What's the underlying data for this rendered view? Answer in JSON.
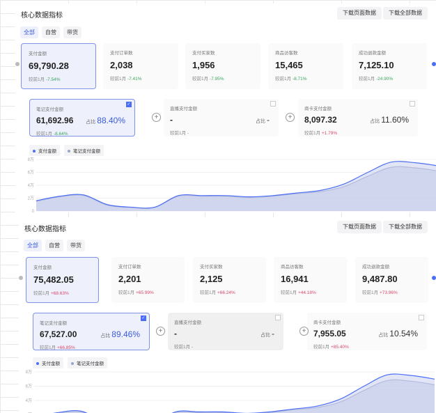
{
  "panels": [
    {
      "title": "核心数据指标",
      "buttons": [
        "下载页面数据",
        "下载全部数据"
      ],
      "tabs": [
        "全部",
        "自营",
        "带货"
      ],
      "active_tab": 0,
      "metrics": [
        {
          "label": "支付金额",
          "value": "69,790.28",
          "compare_label": "较前1月",
          "change": "-7.54%",
          "trend": "down"
        },
        {
          "label": "支付订单数",
          "value": "2,038",
          "compare_label": "较前1月",
          "change": "-7.41%",
          "trend": "down"
        },
        {
          "label": "支付买家数",
          "value": "1,956",
          "compare_label": "较前1月",
          "change": "-7.95%",
          "trend": "down"
        },
        {
          "label": "商品访客数",
          "value": "15,465",
          "compare_label": "较前1月",
          "change": "-8.71%",
          "trend": "down"
        },
        {
          "label": "成功退款金额",
          "value": "7,125.10",
          "compare_label": "较前1月",
          "change": "-24.90%",
          "trend": "down"
        }
      ],
      "channels": [
        {
          "label": "笔记支付金额",
          "value": "61,692.96",
          "ratio_label": "占比",
          "ratio": "88.40%",
          "compare_label": "较前1月",
          "change": "-8.64%",
          "trend": "down",
          "checked": true
        },
        {
          "label": "直播支付金额",
          "value": "-",
          "ratio_label": "占比",
          "ratio": "-",
          "compare_label": "较前1月",
          "change": "-",
          "trend": "none",
          "checked": false
        },
        {
          "label": "商卡支付金额",
          "value": "8,097.32",
          "ratio_label": "占比",
          "ratio": "11.60%",
          "compare_label": "较前1月",
          "change": "+1.79%",
          "trend": "up",
          "checked": false
        }
      ],
      "legend": [
        "支付金额",
        "笔记支付金额"
      ]
    },
    {
      "title": "核心数据指标",
      "buttons": [
        "下载页面数据",
        "下载全部数据"
      ],
      "tabs": [
        "全部",
        "自营",
        "带货"
      ],
      "active_tab": 0,
      "metrics": [
        {
          "label": "支付金额",
          "value": "75,482.05",
          "compare_label": "较前1月",
          "change": "+68.63%",
          "trend": "up"
        },
        {
          "label": "支付订单数",
          "value": "2,201",
          "compare_label": "较前1月",
          "change": "+65.99%",
          "trend": "up"
        },
        {
          "label": "支付买家数",
          "value": "2,125",
          "compare_label": "较前1月",
          "change": "+66.24%",
          "trend": "up"
        },
        {
          "label": "商品访客数",
          "value": "16,941",
          "compare_label": "较前1月",
          "change": "+44.18%",
          "trend": "up"
        },
        {
          "label": "成功退款金额",
          "value": "9,487.80",
          "compare_label": "较前1月",
          "change": "+73.96%",
          "trend": "up"
        }
      ],
      "channels": [
        {
          "label": "笔记支付金额",
          "value": "67,527.00",
          "ratio_label": "占比",
          "ratio": "89.46%",
          "compare_label": "较前1月",
          "change": "+66.85%",
          "trend": "up",
          "checked": true
        },
        {
          "label": "直播支付金额",
          "value": "-",
          "ratio_label": "占比",
          "ratio": "-",
          "compare_label": "较前1月",
          "change": "-",
          "trend": "none",
          "checked": false
        },
        {
          "label": "商卡支付金额",
          "value": "7,955.05",
          "ratio_label": "占比",
          "ratio": "10.54%",
          "compare_label": "较前1月",
          "change": "+85.40%",
          "trend": "up",
          "checked": false
        }
      ],
      "legend": [
        "支付金额",
        "笔记支付金额"
      ]
    }
  ],
  "chart_data": {
    "type": "area",
    "y_ticks": [
      "0",
      "2万",
      "4万",
      "6万",
      "8万"
    ],
    "ylim": [
      0,
      80000
    ],
    "grid": true,
    "legend_position": "top-left",
    "series": [
      {
        "name": "支付金额",
        "color": "#4c6ef5",
        "values": [
          16000,
          23000,
          25000,
          10000,
          6000,
          6000,
          24000,
          24000,
          24000,
          22000,
          24000,
          28000,
          32000,
          42000,
          60000,
          76000,
          75000,
          70000
        ]
      },
      {
        "name": "笔记支付金额",
        "color": "#9aa3c8",
        "values": [
          15000,
          22000,
          24000,
          9000,
          5500,
          5500,
          23000,
          23000,
          23000,
          21000,
          23000,
          27000,
          30000,
          38000,
          54000,
          68000,
          67000,
          62000
        ]
      }
    ]
  },
  "colors": {
    "accent": "#4c6ef5",
    "up": "#d9476a",
    "down": "#3aa35b"
  }
}
